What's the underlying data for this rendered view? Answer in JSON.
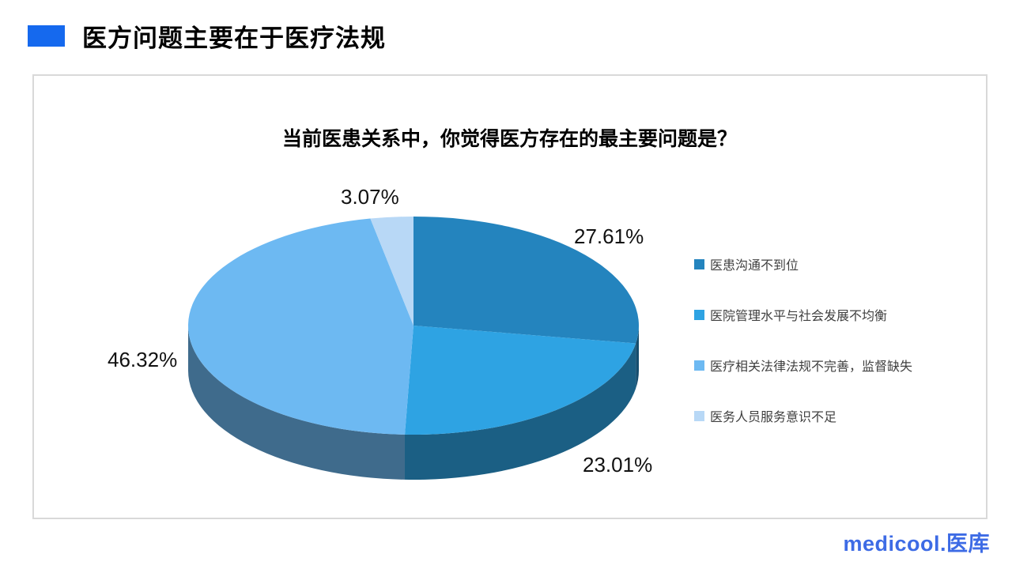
{
  "header": {
    "title": "医方问题主要在于医疗法规",
    "accent_color": "#1569EE"
  },
  "chart_data": {
    "type": "pie",
    "style": "3d",
    "title": "当前医患关系中，你觉得医方存在的最主要问题是？",
    "start_angle_deg": -90,
    "direction": "clockwise",
    "legend_position": "right",
    "slices": [
      {
        "name": "医患沟通不到位",
        "value": 27.61,
        "label": "27.61%",
        "color": "#2484BE"
      },
      {
        "name": "医院管理水平与社会发展不均衡",
        "value": 23.01,
        "label": "23.01%",
        "color": "#2EA3E3"
      },
      {
        "name": "医疗相关法律法规不完善，监督缺失",
        "value": 46.32,
        "label": "46.32%",
        "color": "#6DB9F2"
      },
      {
        "name": "医务人员服务意识不足",
        "value": 3.07,
        "label": "3.07%",
        "color": "#B8D8F6"
      }
    ]
  },
  "footer": {
    "logo": "medicool.医库",
    "logo_color": "#3D6BE5"
  }
}
